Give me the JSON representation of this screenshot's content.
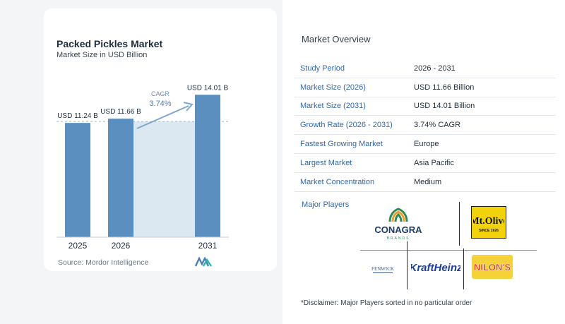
{
  "chart_data": {
    "type": "bar",
    "title": "Packed Pickles Market",
    "subtitle": "Market Size in USD Billion",
    "categories": [
      "2025",
      "2026",
      "2031"
    ],
    "values": [
      11.24,
      11.66,
      14.01
    ],
    "data_labels": [
      "USD 11.24 B",
      "USD 11.66 B",
      "USD 14.01 B"
    ],
    "cagr_label": "CAGR",
    "cagr_value": "3.74%",
    "bar_color": "#5b8fbf",
    "highlight_band_color": "#dce8f1",
    "source": "Source: Mordor Intelligence"
  },
  "overview": {
    "title": "Market Overview",
    "rows": [
      {
        "label": "Study Period",
        "value": "2026 - 2031"
      },
      {
        "label": "Market Size (2026)",
        "value": "USD 11.66 Billion"
      },
      {
        "label": "Market Size (2031)",
        "value": "USD 14.01 Billion"
      },
      {
        "label": "Growth Rate (2026 - 2031)",
        "value": "3.74% CAGR"
      },
      {
        "label": "Fastest Growing Market",
        "value": "Europe"
      },
      {
        "label": "Largest Market",
        "value": "Asia Pacific"
      },
      {
        "label": "Market Concentration",
        "value": "Medium"
      }
    ]
  },
  "players": {
    "title": "Major Players",
    "logos": [
      "CONAGRA",
      "BRANDS",
      "Mt.Olive",
      "SINCE 1926",
      "FENWICK",
      "KraftHeinz",
      "NILON'S"
    ]
  },
  "disclaimer": "*Disclaimer: Major Players sorted in no particular order"
}
